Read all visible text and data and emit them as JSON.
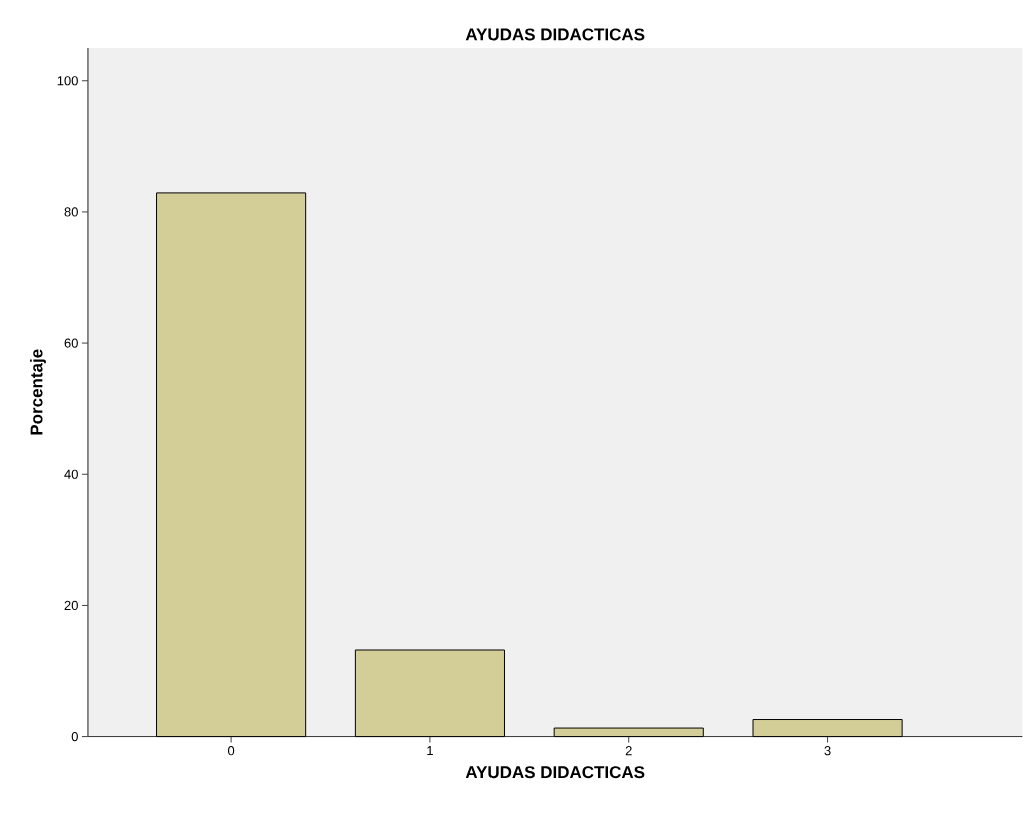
{
  "chart_data": {
    "type": "bar",
    "title": "AYUDAS DIDACTICAS",
    "xlabel": "AYUDAS DIDACTICAS",
    "ylabel": "Porcentaje",
    "categories": [
      "0",
      "1",
      "2",
      "3"
    ],
    "values": [
      82.9,
      13.2,
      1.3,
      2.6
    ],
    "color": "#d3ce97",
    "ylim": [
      0,
      105
    ],
    "yticks": [
      0,
      20,
      40,
      60,
      80,
      100
    ],
    "grid": false
  }
}
